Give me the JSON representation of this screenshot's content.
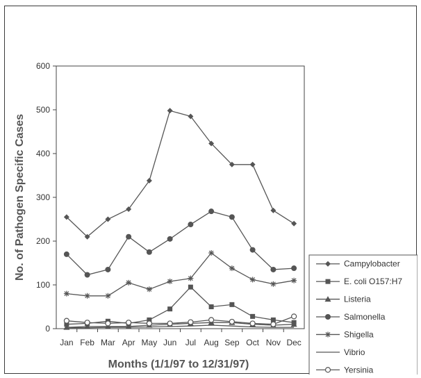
{
  "chart_data": {
    "type": "line",
    "title": "",
    "xlabel": "Months (1/1/97 to 12/31/97)",
    "ylabel": "No. of Pathogen Specific Cases",
    "ylim": [
      0,
      600
    ],
    "yticks": [
      0,
      100,
      200,
      300,
      400,
      500,
      600
    ],
    "grid": false,
    "legend_position": "bottom-right",
    "categories": [
      "Jan",
      "Feb",
      "Mar",
      "Apr",
      "May",
      "Jun",
      "Jul",
      "Aug",
      "Sep",
      "Oct",
      "Nov",
      "Dec"
    ],
    "series": [
      {
        "name": "Campylobacter",
        "marker": "diamond",
        "color": "#555555",
        "values": [
          255,
          210,
          250,
          273,
          338,
          498,
          485,
          423,
          375,
          375,
          270,
          240
        ]
      },
      {
        "name": "E. coli O157:H7",
        "marker": "square",
        "color": "#555555",
        "values": [
          10,
          12,
          17,
          12,
          20,
          45,
          95,
          50,
          55,
          28,
          20,
          14
        ]
      },
      {
        "name": "Listeria",
        "marker": "triangle",
        "color": "#555555",
        "values": [
          3,
          5,
          5,
          5,
          8,
          10,
          12,
          14,
          14,
          10,
          8,
          10
        ]
      },
      {
        "name": "Salmonella",
        "marker": "circle",
        "color": "#555555",
        "values": [
          170,
          123,
          135,
          210,
          175,
          205,
          238,
          268,
          255,
          180,
          135,
          138
        ]
      },
      {
        "name": "Shigella",
        "marker": "asterisk",
        "color": "#555555",
        "values": [
          80,
          75,
          75,
          105,
          90,
          108,
          115,
          173,
          138,
          112,
          102,
          110
        ]
      },
      {
        "name": "Vibrio",
        "marker": "none",
        "color": "#555555",
        "values": [
          2,
          2,
          3,
          3,
          4,
          5,
          6,
          8,
          6,
          4,
          3,
          3
        ]
      },
      {
        "name": "Yersinia",
        "marker": "open-circle",
        "color": "#555555",
        "values": [
          18,
          14,
          12,
          14,
          12,
          12,
          15,
          20,
          16,
          12,
          10,
          28
        ]
      }
    ]
  }
}
